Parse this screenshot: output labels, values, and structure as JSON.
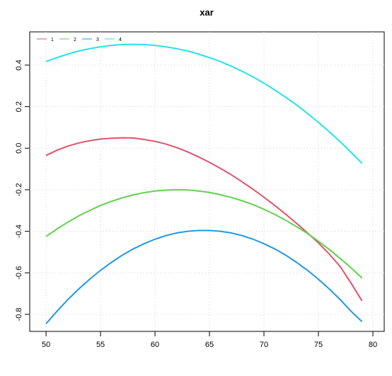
{
  "chart_data": {
    "type": "line",
    "title": "xar",
    "x": [
      50,
      51,
      52,
      53,
      54,
      55,
      56,
      57,
      58,
      59,
      60,
      61,
      62,
      63,
      64,
      65,
      66,
      67,
      68,
      69,
      70,
      71,
      72,
      73,
      74,
      75,
      76,
      77,
      78,
      79
    ],
    "series": [
      {
        "name": "1",
        "color": "#DF536B",
        "values": [
          -0.035,
          -0.01,
          0.01,
          0.025,
          0.036,
          0.044,
          0.048,
          0.05,
          0.049,
          0.042,
          0.033,
          0.02,
          0.003,
          -0.018,
          -0.042,
          -0.068,
          -0.097,
          -0.128,
          -0.162,
          -0.198,
          -0.236,
          -0.276,
          -0.318,
          -0.362,
          -0.408,
          -0.456,
          -0.51,
          -0.57,
          -0.65,
          -0.735
        ]
      },
      {
        "name": "2",
        "color": "#61D04F",
        "values": [
          -0.425,
          -0.389,
          -0.356,
          -0.326,
          -0.3,
          -0.276,
          -0.256,
          -0.239,
          -0.225,
          -0.214,
          -0.206,
          -0.202,
          -0.2,
          -0.201,
          -0.206,
          -0.213,
          -0.224,
          -0.237,
          -0.253,
          -0.272,
          -0.294,
          -0.319,
          -0.347,
          -0.378,
          -0.411,
          -0.448,
          -0.488,
          -0.531,
          -0.576,
          -0.625
        ]
      },
      {
        "name": "3",
        "color": "#2297E6",
        "values": [
          -0.845,
          -0.785,
          -0.729,
          -0.678,
          -0.631,
          -0.588,
          -0.55,
          -0.515,
          -0.485,
          -0.46,
          -0.438,
          -0.421,
          -0.408,
          -0.4,
          -0.396,
          -0.396,
          -0.4,
          -0.408,
          -0.421,
          -0.438,
          -0.46,
          -0.485,
          -0.515,
          -0.55,
          -0.588,
          -0.631,
          -0.678,
          -0.729,
          -0.785,
          -0.835
        ]
      },
      {
        "name": "4",
        "color": "#28E2E5",
        "values": [
          0.417,
          0.436,
          0.453,
          0.468,
          0.479,
          0.488,
          0.495,
          0.499,
          0.5,
          0.499,
          0.495,
          0.488,
          0.479,
          0.468,
          0.453,
          0.436,
          0.417,
          0.395,
          0.37,
          0.343,
          0.313,
          0.28,
          0.245,
          0.208,
          0.167,
          0.124,
          0.079,
          0.031,
          -0.02,
          -0.073
        ]
      }
    ],
    "xlim": [
      48.5,
      81.04
    ],
    "ylim": [
      -0.882,
      0.56
    ],
    "xticks": [
      50,
      55,
      60,
      65,
      70,
      75,
      80
    ],
    "yticks": [
      -0.8,
      -0.6,
      -0.4,
      -0.2,
      {
        "value": 0,
        "label": "0.0"
      },
      0.2,
      0.4
    ],
    "grid": true,
    "legend": "top-left"
  }
}
